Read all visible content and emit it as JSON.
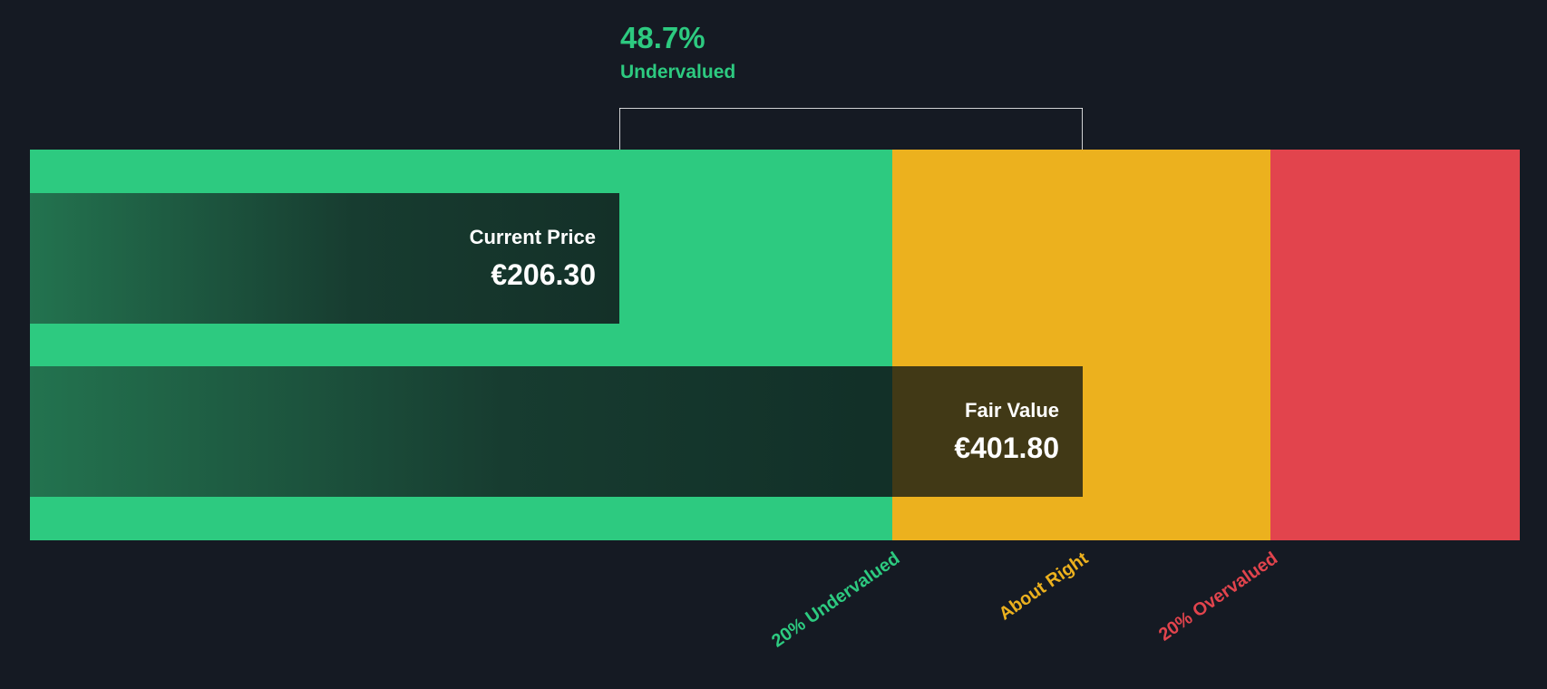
{
  "colors": {
    "background": "#151a23",
    "undervalued_green": "#2dca80",
    "about_right_yellow": "#ecb11e",
    "overvalued_red": "#e2444d",
    "bar_overlay_dark_green": "#143028",
    "fair_value_label_bg": "#413916"
  },
  "chart_data": {
    "type": "bar",
    "currency_symbol": "€",
    "categories": [
      "Current Price",
      "Fair Value"
    ],
    "values": [
      206.3,
      401.8
    ],
    "annotation": {
      "percent_display": "48.7%",
      "percent": 48.7,
      "status": "Undervalued"
    },
    "bars": [
      {
        "label": "Current Price",
        "value": 206.3,
        "display_value": "€206.30"
      },
      {
        "label": "Fair Value",
        "value": 401.8,
        "display_value": "€401.80"
      }
    ],
    "zones": [
      {
        "label": "20% Undervalued",
        "color": "#2dca80"
      },
      {
        "label": "About Right",
        "color": "#ecb11e"
      },
      {
        "label": "20% Overvalued",
        "color": "#e2444d"
      }
    ],
    "legend_position": "none",
    "grid": false
  }
}
